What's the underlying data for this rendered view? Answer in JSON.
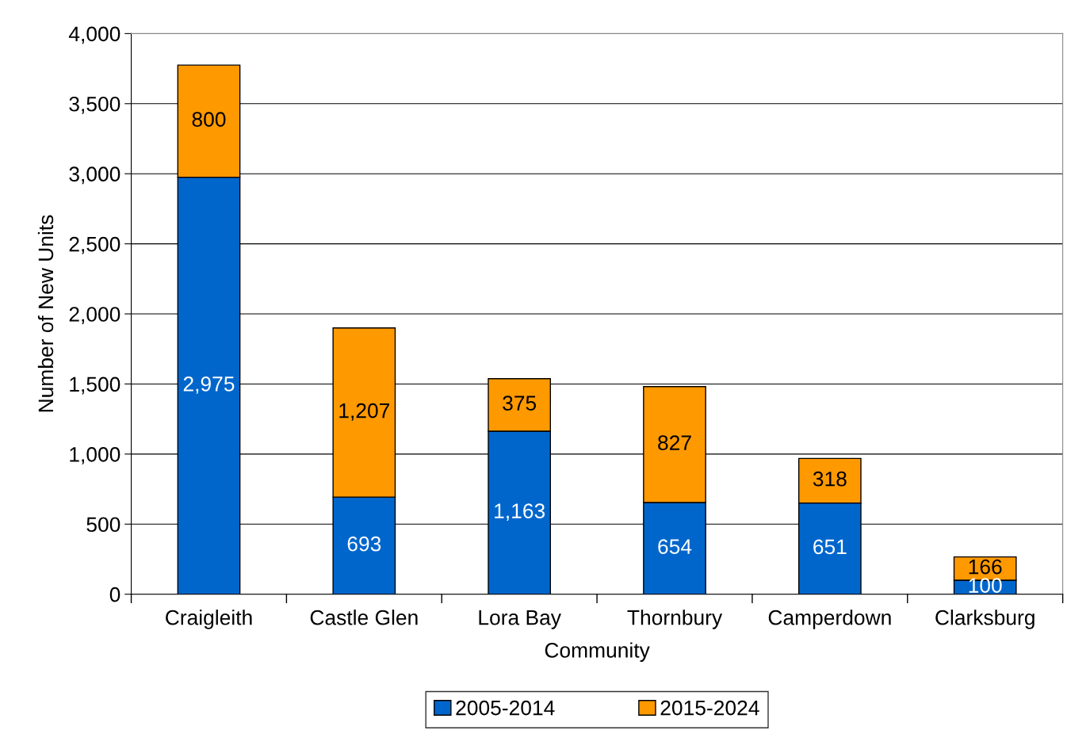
{
  "chart_data": {
    "type": "bar",
    "stacked": true,
    "xlabel": "Community",
    "ylabel": "Number of New Units",
    "categories": [
      "Craigleith",
      "Castle Glen",
      "Lora Bay",
      "Thornbury",
      "Camperdown",
      "Clarksburg"
    ],
    "series": [
      {
        "name": "2005-2014",
        "color": "#0066cc",
        "values": [
          2975,
          693,
          1163,
          654,
          651,
          100
        ],
        "value_labels": [
          "2,975",
          "693",
          "1,163",
          "654",
          "651",
          "100"
        ]
      },
      {
        "name": "2015-2024",
        "color": "#ff9900",
        "values": [
          800,
          1207,
          375,
          827,
          318,
          166
        ],
        "value_labels": [
          "800",
          "1,207",
          "375",
          "827",
          "318",
          "166"
        ]
      }
    ],
    "ylim": [
      0,
      4000
    ],
    "yticks": [
      0,
      500,
      {
        "value": 1000,
        "label": "1,000"
      },
      {
        "value": 1500,
        "label": "1,500"
      },
      {
        "value": 2000,
        "label": "2,000"
      },
      {
        "value": 2500,
        "label": "2,500"
      },
      {
        "value": 3000,
        "label": "3,000"
      },
      {
        "value": 3500,
        "label": "3,500"
      },
      {
        "value": 4000,
        "label": "4,000"
      }
    ],
    "grid": "y",
    "legend": "bottom"
  }
}
